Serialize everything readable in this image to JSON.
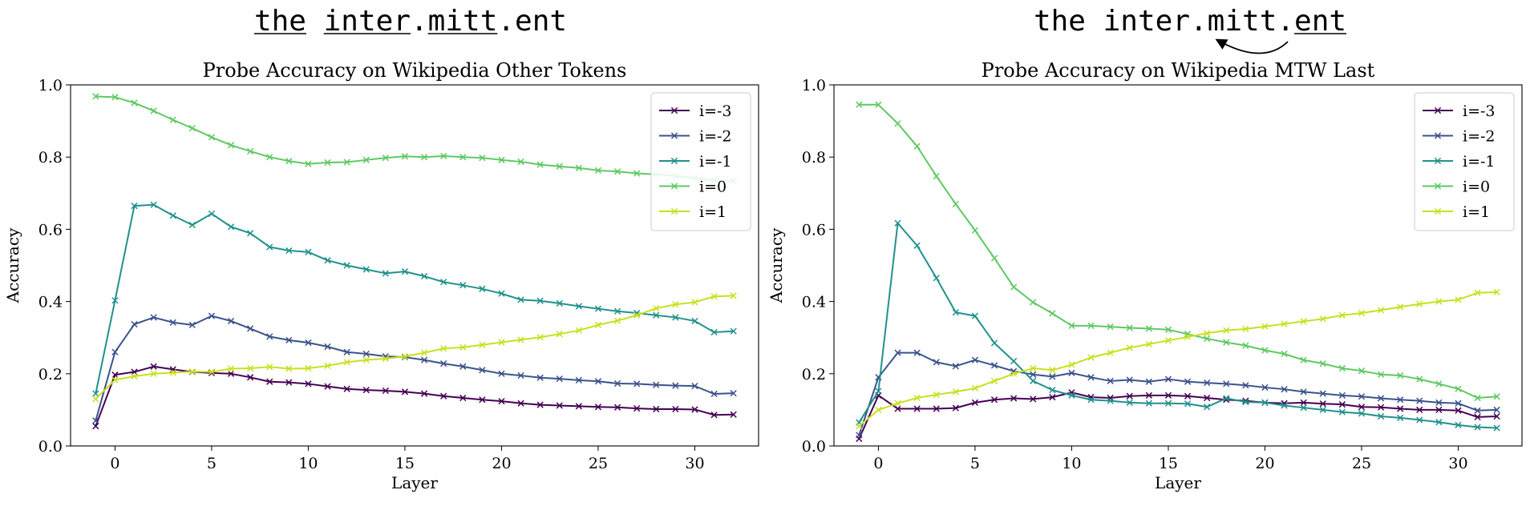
{
  "headers": [
    {
      "tokens": [
        {
          "text": "the",
          "underline": true
        },
        {
          "text": " ",
          "underline": false
        },
        {
          "text": "inter",
          "underline": true
        },
        {
          "text": ".",
          "underline": false
        },
        {
          "text": "mitt",
          "underline": true
        },
        {
          "text": ".ent",
          "underline": false
        }
      ],
      "arrow": false
    },
    {
      "tokens": [
        {
          "text": "the inter.mitt.",
          "underline": false
        },
        {
          "text": "ent",
          "underline": true
        }
      ],
      "arrow": true
    }
  ],
  "colors": {
    "i=-3": "#440154",
    "i=-2": "#3b528b",
    "i=-1": "#21918c",
    "i=0": "#5ec962",
    "i=1": "#c8e020"
  },
  "chart_data": [
    {
      "type": "line",
      "title": "Probe Accuracy on Wikipedia Other Tokens",
      "xlabel": "Layer",
      "ylabel": "Accuracy",
      "xlim": [
        -2.3,
        33.3
      ],
      "ylim": [
        0.0,
        1.0
      ],
      "xticks": [
        0,
        5,
        10,
        15,
        20,
        25,
        30
      ],
      "yticks": [
        0.0,
        0.2,
        0.4,
        0.6,
        0.8,
        1.0
      ],
      "grid": false,
      "legend_position": "top-right",
      "x": [
        -1,
        0,
        1,
        2,
        3,
        4,
        5,
        6,
        7,
        8,
        9,
        10,
        11,
        12,
        13,
        14,
        15,
        16,
        17,
        18,
        19,
        20,
        21,
        22,
        23,
        24,
        25,
        26,
        27,
        28,
        29,
        30,
        31,
        32
      ],
      "series": [
        {
          "name": "i=-3",
          "values": [
            0.055,
            0.197,
            0.205,
            0.22,
            0.212,
            0.205,
            0.202,
            0.2,
            0.19,
            0.178,
            0.176,
            0.172,
            0.165,
            0.158,
            0.155,
            0.153,
            0.15,
            0.145,
            0.138,
            0.133,
            0.128,
            0.124,
            0.118,
            0.114,
            0.112,
            0.11,
            0.108,
            0.107,
            0.104,
            0.102,
            0.102,
            0.101,
            0.086,
            0.087
          ]
        },
        {
          "name": "i=-2",
          "values": [
            0.07,
            0.26,
            0.337,
            0.356,
            0.342,
            0.335,
            0.36,
            0.346,
            0.325,
            0.303,
            0.293,
            0.286,
            0.275,
            0.26,
            0.255,
            0.248,
            0.246,
            0.238,
            0.228,
            0.22,
            0.21,
            0.2,
            0.195,
            0.189,
            0.186,
            0.182,
            0.179,
            0.173,
            0.172,
            0.169,
            0.167,
            0.166,
            0.144,
            0.146
          ]
        },
        {
          "name": "i=-1",
          "values": [
            0.145,
            0.403,
            0.665,
            0.668,
            0.638,
            0.612,
            0.643,
            0.607,
            0.589,
            0.551,
            0.541,
            0.537,
            0.514,
            0.5,
            0.489,
            0.478,
            0.483,
            0.47,
            0.454,
            0.445,
            0.435,
            0.422,
            0.405,
            0.402,
            0.395,
            0.387,
            0.38,
            0.373,
            0.368,
            0.362,
            0.356,
            0.346,
            0.315,
            0.318
          ]
        },
        {
          "name": "i=0",
          "values": [
            0.968,
            0.966,
            0.95,
            0.928,
            0.903,
            0.88,
            0.855,
            0.833,
            0.816,
            0.8,
            0.789,
            0.781,
            0.785,
            0.786,
            0.792,
            0.798,
            0.802,
            0.8,
            0.803,
            0.8,
            0.798,
            0.792,
            0.787,
            0.779,
            0.774,
            0.77,
            0.763,
            0.76,
            0.755,
            0.752,
            0.748,
            0.742,
            0.735,
            0.733
          ]
        },
        {
          "name": "i=1",
          "values": [
            0.13,
            0.183,
            0.193,
            0.2,
            0.203,
            0.206,
            0.205,
            0.214,
            0.215,
            0.219,
            0.214,
            0.215,
            0.222,
            0.232,
            0.238,
            0.242,
            0.248,
            0.258,
            0.27,
            0.273,
            0.28,
            0.287,
            0.294,
            0.301,
            0.31,
            0.32,
            0.335,
            0.347,
            0.362,
            0.381,
            0.392,
            0.398,
            0.414,
            0.416
          ]
        }
      ]
    },
    {
      "type": "line",
      "title": "Probe Accuracy on Wikipedia MTW Last",
      "xlabel": "Layer",
      "ylabel": "Accuracy",
      "xlim": [
        -2.3,
        33.3
      ],
      "ylim": [
        0.0,
        1.0
      ],
      "xticks": [
        0,
        5,
        10,
        15,
        20,
        25,
        30
      ],
      "yticks": [
        0.0,
        0.2,
        0.4,
        0.6,
        0.8,
        1.0
      ],
      "grid": false,
      "legend_position": "top-right",
      "x": [
        -1,
        0,
        1,
        2,
        3,
        4,
        5,
        6,
        7,
        8,
        9,
        10,
        11,
        12,
        13,
        14,
        15,
        16,
        17,
        18,
        19,
        20,
        21,
        22,
        23,
        24,
        25,
        26,
        27,
        28,
        29,
        30,
        31,
        32
      ],
      "series": [
        {
          "name": "i=-3",
          "values": [
            0.02,
            0.14,
            0.103,
            0.103,
            0.103,
            0.105,
            0.12,
            0.128,
            0.132,
            0.13,
            0.135,
            0.148,
            0.135,
            0.133,
            0.138,
            0.14,
            0.14,
            0.138,
            0.133,
            0.128,
            0.125,
            0.12,
            0.118,
            0.12,
            0.117,
            0.115,
            0.108,
            0.107,
            0.103,
            0.1,
            0.1,
            0.098,
            0.08,
            0.082
          ]
        },
        {
          "name": "i=-2",
          "values": [
            0.03,
            0.19,
            0.258,
            0.258,
            0.232,
            0.221,
            0.238,
            0.223,
            0.207,
            0.198,
            0.192,
            0.202,
            0.19,
            0.18,
            0.183,
            0.178,
            0.185,
            0.178,
            0.175,
            0.172,
            0.168,
            0.162,
            0.157,
            0.15,
            0.145,
            0.14,
            0.137,
            0.132,
            0.128,
            0.125,
            0.12,
            0.118,
            0.098,
            0.1
          ]
        },
        {
          "name": "i=-1",
          "values": [
            0.065,
            0.152,
            0.617,
            0.555,
            0.465,
            0.37,
            0.36,
            0.285,
            0.235,
            0.18,
            0.155,
            0.14,
            0.128,
            0.125,
            0.12,
            0.118,
            0.118,
            0.117,
            0.108,
            0.132,
            0.122,
            0.12,
            0.112,
            0.106,
            0.1,
            0.094,
            0.09,
            0.082,
            0.078,
            0.072,
            0.066,
            0.058,
            0.052,
            0.05
          ]
        },
        {
          "name": "i=0",
          "values": [
            0.945,
            0.945,
            0.893,
            0.83,
            0.747,
            0.67,
            0.597,
            0.52,
            0.44,
            0.398,
            0.367,
            0.333,
            0.333,
            0.33,
            0.327,
            0.325,
            0.322,
            0.31,
            0.297,
            0.287,
            0.278,
            0.265,
            0.255,
            0.238,
            0.228,
            0.215,
            0.208,
            0.198,
            0.195,
            0.185,
            0.172,
            0.158,
            0.133,
            0.137
          ]
        },
        {
          "name": "i=1",
          "values": [
            0.055,
            0.1,
            0.118,
            0.133,
            0.142,
            0.15,
            0.16,
            0.18,
            0.2,
            0.215,
            0.21,
            0.225,
            0.245,
            0.258,
            0.272,
            0.282,
            0.292,
            0.302,
            0.312,
            0.32,
            0.324,
            0.331,
            0.338,
            0.345,
            0.352,
            0.362,
            0.368,
            0.376,
            0.385,
            0.393,
            0.4,
            0.405,
            0.424,
            0.426
          ]
        }
      ]
    }
  ]
}
